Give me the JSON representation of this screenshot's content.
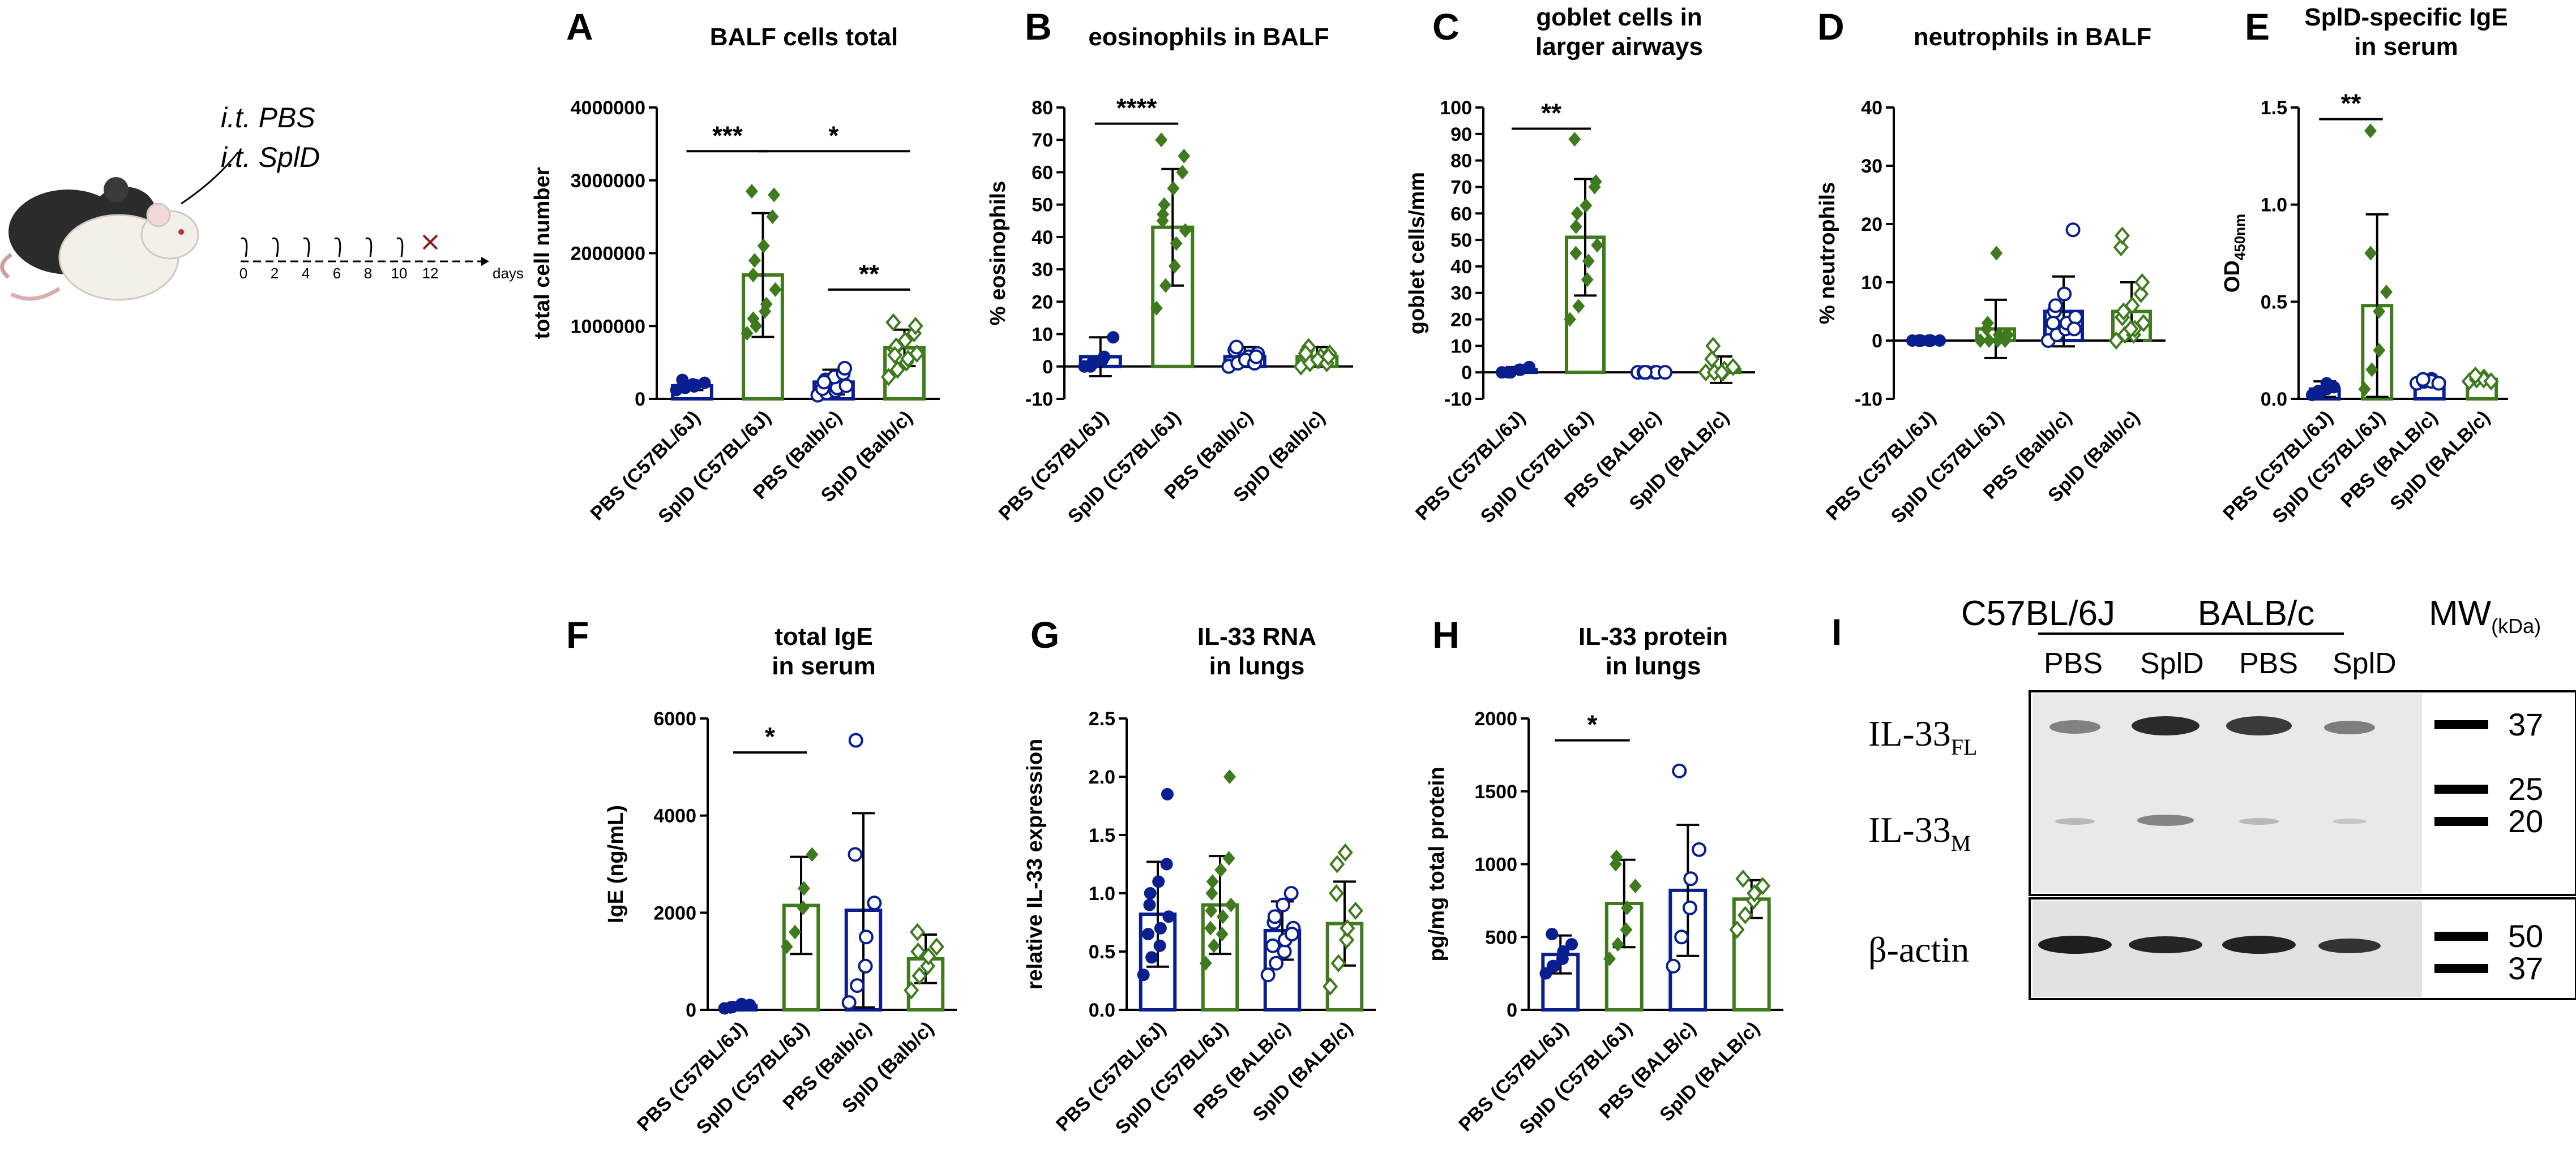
{
  "colors": {
    "blue": "#0a1f8f",
    "green": "#3f7a1e",
    "axis": "#000000"
  },
  "schematic": {
    "line1": "i.t. PBS",
    "line2": "i.t. SplD",
    "days": [
      "0",
      "2",
      "4",
      "6",
      "8",
      "10",
      "12"
    ],
    "days_label": "days"
  },
  "chart_data": [
    {
      "id": "A",
      "type": "bar",
      "title": [
        "BALF cells total"
      ],
      "ylabel": "total cell number",
      "ylim": [
        0,
        4000000
      ],
      "yticks": [
        "0",
        "1000000",
        "2000000",
        "3000000",
        "4000000"
      ],
      "ytickvals": [
        0,
        1000000,
        2000000,
        3000000,
        4000000
      ],
      "categories": [
        "PBS (C57BL/6J)",
        "SplD (C57BL/6J)",
        "PBS (Balb/c)",
        "SplD (Balb/c)"
      ],
      "groups": [
        {
          "mean": 180000,
          "sd": 60000,
          "color": "blue",
          "marker": "dot",
          "points": [
            120000,
            150000,
            170000,
            190000,
            220000,
            260000,
            160000,
            200000
          ]
        },
        {
          "mean": 1700000,
          "sd": 850000,
          "color": "green",
          "marker": "diamond",
          "points": [
            900000,
            1000000,
            1200000,
            1300000,
            1500000,
            1700000,
            1900000,
            2100000,
            2500000,
            2800000,
            2850000,
            1100000
          ]
        },
        {
          "mean": 230000,
          "sd": 170000,
          "color": "blue",
          "marker": "circle",
          "points": [
            50000,
            80000,
            110000,
            150000,
            180000,
            210000,
            260000,
            300000,
            350000,
            420000,
            140000,
            230000
          ]
        },
        {
          "mean": 700000,
          "sd": 250000,
          "color": "green",
          "marker": "odiamond",
          "points": [
            300000,
            400000,
            500000,
            550000,
            620000,
            680000,
            720000,
            800000,
            900000,
            1000000,
            1050000,
            600000
          ]
        }
      ],
      "sig": [
        {
          "from": 0,
          "to": 1,
          "label": "***",
          "y": 3400000
        },
        {
          "from": 1,
          "to": 3,
          "label": "*",
          "y": 3400000
        },
        {
          "from": 2,
          "to": 3,
          "label": "**",
          "y": 1500000
        }
      ]
    },
    {
      "id": "B",
      "type": "bar",
      "title": [
        "eosinophils in BALF"
      ],
      "ylabel": "% eosinophils",
      "ylim": [
        -10,
        80
      ],
      "yticks": [
        "-10",
        "0",
        "10",
        "20",
        "30",
        "40",
        "50",
        "60",
        "70",
        "80"
      ],
      "ytickvals": [
        -10,
        0,
        10,
        20,
        30,
        40,
        50,
        60,
        70,
        80
      ],
      "categories": [
        "PBS (C57BL/6J)",
        "SplD (C57BL/6J)",
        "PBS (Balb/c)",
        "SplD (Balb/c)"
      ],
      "groups": [
        {
          "mean": 3,
          "sd": 6,
          "color": "blue",
          "marker": "dot",
          "points": [
            0,
            1,
            2,
            3,
            9,
            0,
            1,
            2
          ]
        },
        {
          "mean": 43,
          "sd": 18,
          "color": "green",
          "marker": "diamond",
          "points": [
            18,
            25,
            31,
            38,
            42,
            45,
            50,
            55,
            60,
            65,
            70,
            47
          ]
        },
        {
          "mean": 3,
          "sd": 3,
          "color": "blue",
          "marker": "circle",
          "points": [
            0,
            1,
            2,
            3,
            4,
            5,
            6,
            2,
            1,
            3
          ]
        },
        {
          "mean": 3,
          "sd": 3,
          "color": "green",
          "marker": "odiamond",
          "points": [
            0,
            1,
            2,
            3,
            4,
            5,
            6,
            2,
            1,
            3,
            4
          ]
        }
      ],
      "sig": [
        {
          "from": 0,
          "to": 1,
          "label": "****",
          "y": 75
        }
      ]
    },
    {
      "id": "C",
      "type": "bar",
      "title": [
        "goblet cells in",
        "larger airways"
      ],
      "ylabel": "goblet cells/mm",
      "ylim": [
        -10,
        100
      ],
      "yticks": [
        "-10",
        "0",
        "10",
        "20",
        "30",
        "40",
        "50",
        "60",
        "70",
        "80",
        "90",
        "100"
      ],
      "ytickvals": [
        -10,
        0,
        10,
        20,
        30,
        40,
        50,
        60,
        70,
        80,
        90,
        100
      ],
      "categories": [
        "PBS (C57BL/6J)",
        "SplD (C57BL/6J)",
        "PBS (BALB/c)",
        "SplD (BALB/c)"
      ],
      "groups": [
        {
          "mean": 1,
          "sd": 1,
          "color": "blue",
          "marker": "dot",
          "points": [
            0,
            0,
            1,
            1,
            2,
            0
          ]
        },
        {
          "mean": 51,
          "sd": 22,
          "color": "green",
          "marker": "diamond",
          "points": [
            20,
            25,
            35,
            42,
            48,
            55,
            60,
            63,
            70,
            72,
            88,
            45
          ]
        },
        {
          "mean": 0,
          "sd": 0.5,
          "color": "blue",
          "marker": "circle",
          "points": [
            0,
            0,
            0,
            0,
            0,
            0,
            0
          ]
        },
        {
          "mean": 1,
          "sd": 5,
          "color": "green",
          "marker": "odiamond",
          "points": [
            0,
            0,
            0,
            1,
            2,
            5,
            10,
            0
          ]
        }
      ],
      "sig": [
        {
          "from": 0,
          "to": 1,
          "label": "**",
          "y": 92
        }
      ]
    },
    {
      "id": "D",
      "type": "bar",
      "title": [
        "neutrophils in BALF"
      ],
      "ylabel": "% neutrophils",
      "ylim": [
        -10,
        40
      ],
      "yticks": [
        "-10",
        "0",
        "10",
        "20",
        "30",
        "40"
      ],
      "ytickvals": [
        -10,
        0,
        10,
        20,
        30,
        40
      ],
      "categories": [
        "PBS (C57BL/6J)",
        "SplD (C57BL/6J)",
        "PBS (Balb/c)",
        "SplD (Balb/c)"
      ],
      "groups": [
        {
          "mean": 0,
          "sd": 0.3,
          "color": "blue",
          "marker": "dot",
          "points": [
            0,
            0,
            0,
            0,
            0,
            0,
            0,
            0
          ]
        },
        {
          "mean": 2,
          "sd": 5,
          "color": "green",
          "marker": "diamond",
          "points": [
            0,
            0,
            0,
            1,
            1,
            2,
            3,
            15,
            0,
            1
          ]
        },
        {
          "mean": 5,
          "sd": 6,
          "color": "blue",
          "marker": "circle",
          "points": [
            0,
            1,
            2,
            3,
            4,
            5,
            6,
            8,
            19,
            2,
            3
          ]
        },
        {
          "mean": 5,
          "sd": 5,
          "color": "green",
          "marker": "odiamond",
          "points": [
            0,
            1,
            1,
            2,
            3,
            4,
            5,
            6,
            8,
            10,
            16,
            18,
            2
          ]
        }
      ],
      "sig": []
    },
    {
      "id": "E",
      "type": "bar",
      "title": [
        "SplD-specific IgE",
        "in serum"
      ],
      "ylabel": "OD450nm",
      "ylabel_main": "OD",
      "ylabel_sub": "450nm",
      "ylim": [
        0,
        1.5
      ],
      "yticks": [
        "0.0",
        "0.5",
        "1.0",
        "1.5"
      ],
      "ytickvals": [
        0,
        0.5,
        1.0,
        1.5
      ],
      "categories": [
        "PBS (C57BL/6J)",
        "SplD (C57BL/6J)",
        "PBS (BALB/c)",
        "SplD (BALB/c)"
      ],
      "groups": [
        {
          "mean": 0.05,
          "sd": 0.04,
          "color": "blue",
          "marker": "dot",
          "points": [
            0.02,
            0.03,
            0.05,
            0.08,
            0.06,
            0.04
          ]
        },
        {
          "mean": 0.48,
          "sd": 0.47,
          "color": "green",
          "marker": "diamond",
          "points": [
            0.05,
            0.15,
            0.25,
            0.45,
            0.55,
            0.75,
            1.38
          ]
        },
        {
          "mean": 0.09,
          "sd": 0.02,
          "color": "blue",
          "marker": "circle",
          "points": [
            0.08,
            0.09,
            0.1,
            0.09,
            0.08,
            0.1
          ]
        },
        {
          "mean": 0.1,
          "sd": 0.02,
          "color": "green",
          "marker": "odiamond",
          "points": [
            0.09,
            0.1,
            0.11,
            0.1,
            0.09,
            0.12
          ]
        }
      ],
      "sig": [
        {
          "from": 0,
          "to": 1,
          "label": "**",
          "y": 1.44
        }
      ]
    },
    {
      "id": "F",
      "type": "bar",
      "title": [
        "total IgE",
        "in serum"
      ],
      "ylabel": "IgE (ng/mL)",
      "ylim": [
        0,
        6000
      ],
      "yticks": [
        "0",
        "2000",
        "4000",
        "6000"
      ],
      "ytickvals": [
        0,
        2000,
        4000,
        6000
      ],
      "categories": [
        "PBS (C57BL/6J)",
        "SplD (C57BL/6J)",
        "PBS (Balb/c)",
        "SplD (Balb/c)"
      ],
      "groups": [
        {
          "mean": 80,
          "sd": 40,
          "color": "blue",
          "marker": "dot",
          "points": [
            30,
            60,
            90,
            120,
            100,
            50
          ]
        },
        {
          "mean": 2150,
          "sd": 1000,
          "color": "green",
          "marker": "diamond",
          "points": [
            1300,
            1600,
            2100,
            2500,
            3200
          ]
        },
        {
          "mean": 2050,
          "sd": 2000,
          "color": "blue",
          "marker": "circle",
          "points": [
            150,
            500,
            900,
            1500,
            2200,
            3200,
            5550
          ]
        },
        {
          "mean": 1050,
          "sd": 500,
          "color": "green",
          "marker": "odiamond",
          "points": [
            400,
            700,
            900,
            1100,
            1300,
            1600,
            1200
          ]
        }
      ],
      "sig": [
        {
          "from": 0,
          "to": 1,
          "label": "*",
          "y": 5300
        }
      ]
    },
    {
      "id": "G",
      "type": "bar",
      "title": [
        "IL-33 RNA",
        "in lungs"
      ],
      "ylabel": "relative IL-33 expression",
      "ylim": [
        0,
        2.5
      ],
      "yticks": [
        "0.0",
        "0.5",
        "1.0",
        "1.5",
        "2.0",
        "2.5"
      ],
      "ytickvals": [
        0,
        0.5,
        1.0,
        1.5,
        2.0,
        2.5
      ],
      "categories": [
        "PBS (C57BL/6J)",
        "SplD (C57BL/6J)",
        "PBS (BALB/c)",
        "SplD (BALB/c)"
      ],
      "groups": [
        {
          "mean": 0.82,
          "sd": 0.45,
          "color": "blue",
          "marker": "dot",
          "points": [
            0.3,
            0.45,
            0.55,
            0.7,
            0.8,
            0.9,
            1.0,
            1.1,
            1.25,
            1.85,
            0.65
          ]
        },
        {
          "mean": 0.9,
          "sd": 0.42,
          "color": "green",
          "marker": "diamond",
          "points": [
            0.4,
            0.55,
            0.65,
            0.8,
            0.9,
            1.0,
            1.1,
            1.2,
            1.3,
            2.0,
            0.7,
            0.85
          ]
        },
        {
          "mean": 0.68,
          "sd": 0.25,
          "color": "blue",
          "marker": "circle",
          "points": [
            0.3,
            0.4,
            0.5,
            0.6,
            0.7,
            0.75,
            0.8,
            0.9,
            1.0,
            0.65,
            0.55
          ]
        },
        {
          "mean": 0.74,
          "sd": 0.36,
          "color": "green",
          "marker": "odiamond",
          "points": [
            0.2,
            0.4,
            0.6,
            0.7,
            0.85,
            1.0,
            1.25,
            1.35
          ]
        }
      ],
      "sig": []
    },
    {
      "id": "H",
      "type": "bar",
      "title": [
        "IL-33 protein",
        "in lungs"
      ],
      "ylabel": "pg/mg total protein",
      "ylim": [
        0,
        2000
      ],
      "yticks": [
        "0",
        "500",
        "1000",
        "1500",
        "2000"
      ],
      "ytickvals": [
        0,
        500,
        1000,
        1500,
        2000
      ],
      "categories": [
        "PBS (C57BL/6J)",
        "SplD (C57BL/6J)",
        "PBS (BALB/c)",
        "SplD (BALB/c)"
      ],
      "groups": [
        {
          "mean": 380,
          "sd": 130,
          "color": "blue",
          "marker": "dot",
          "points": [
            250,
            300,
            350,
            400,
            450,
            520,
            300
          ]
        },
        {
          "mean": 730,
          "sd": 300,
          "color": "green",
          "marker": "diamond",
          "points": [
            350,
            450,
            550,
            700,
            850,
            1000,
            1050
          ]
        },
        {
          "mean": 820,
          "sd": 450,
          "color": "blue",
          "marker": "circle",
          "points": [
            300,
            500,
            700,
            900,
            1100,
            1640
          ]
        },
        {
          "mean": 760,
          "sd": 130,
          "color": "green",
          "marker": "odiamond",
          "points": [
            550,
            650,
            750,
            800,
            850,
            900
          ]
        }
      ],
      "sig": [
        {
          "from": 0,
          "to": 1,
          "label": "*",
          "y": 1850
        }
      ]
    }
  ],
  "western_blot": {
    "label": "I",
    "strain1": "C57BL/6J",
    "strain2": "BALB/c",
    "lanes": [
      "PBS",
      "SplD",
      "PBS",
      "SplD"
    ],
    "mw_title": "MW",
    "mw_unit": "(kDa)",
    "row1_a": "IL-33",
    "row1_a_sub": "FL",
    "row1_b": "IL-33",
    "row1_b_sub": "M",
    "row2": "β-actin",
    "markers_top": [
      "37",
      "25",
      "20"
    ],
    "markers_bottom": [
      "50",
      "37"
    ]
  }
}
